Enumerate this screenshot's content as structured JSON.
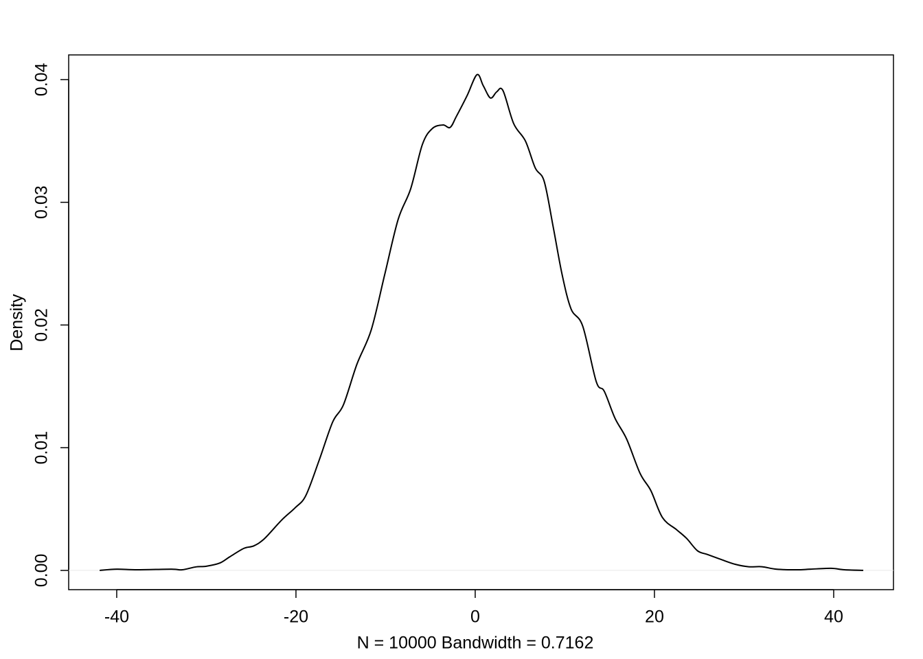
{
  "chart_data": {
    "type": "line",
    "xlabel": "N = 10000   Bandwidth = 0.7162",
    "ylabel": "Density",
    "color": "#000000",
    "zero_line": true,
    "xlim": [
      -45.36,
      46.67
    ],
    "ylim": [
      -0.00157,
      0.04201
    ],
    "xticks": [
      -40,
      -20,
      0,
      20,
      40
    ],
    "yticks": [
      {
        "value": 0,
        "label": "0.00"
      },
      0.01,
      0.02,
      0.03,
      0.04
    ],
    "x": [
      -41.9,
      -40,
      -37.7,
      -33.9,
      -32.7,
      -31.2,
      -30,
      -28.5,
      -27.4,
      -25.8,
      -24.7,
      -23.5,
      -21.6,
      -20.1,
      -18.9,
      -17.4,
      -15.9,
      -14.7,
      -13.2,
      -11.6,
      -10.1,
      -8.6,
      -7.2,
      -5.9,
      -4.8,
      -3.6,
      -2.8,
      -2.1,
      -0.9,
      0.2,
      0.9,
      1.7,
      2.4,
      3.1,
      4.3,
      5.6,
      6.7,
      7.7,
      8.7,
      9.7,
      10.7,
      12.0,
      13.5,
      14.4,
      15.6,
      16.9,
      18.4,
      19.6,
      20.9,
      22.5,
      23.6,
      24.8,
      25.9,
      27.4,
      29.0,
      30.5,
      32.0,
      33.6,
      35.9,
      37.4,
      39.7,
      41.2,
      43.3
    ],
    "values": [
      0,
      0.0001,
      5e-05,
      0.0001,
      5e-05,
      0.00028,
      0.00034,
      0.0006,
      0.0011,
      0.0018,
      0.002,
      0.0026,
      0.0041,
      0.0051,
      0.0061,
      0.009,
      0.0121,
      0.0135,
      0.0168,
      0.0196,
      0.0241,
      0.0286,
      0.0311,
      0.0347,
      0.036,
      0.0363,
      0.0361,
      0.037,
      0.0387,
      0.0404,
      0.0395,
      0.0385,
      0.039,
      0.0391,
      0.0364,
      0.035,
      0.0328,
      0.0317,
      0.028,
      0.0241,
      0.0213,
      0.0199,
      0.0154,
      0.0146,
      0.0124,
      0.0107,
      0.0079,
      0.0065,
      0.0043,
      0.0033,
      0.0026,
      0.0016,
      0.0013,
      0.0009,
      0.0005,
      0.0003,
      0.0003,
      0.0001,
      5e-05,
      0.0001,
      0.00017,
      5e-05,
      0
    ]
  }
}
